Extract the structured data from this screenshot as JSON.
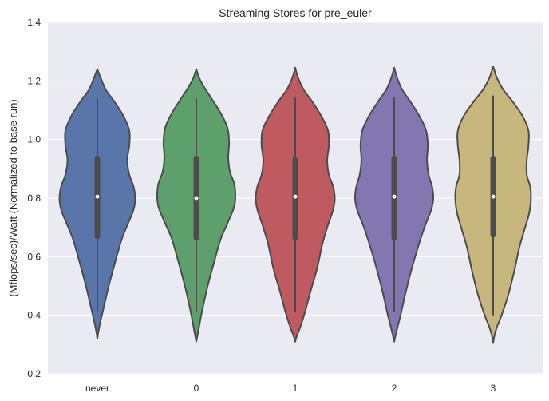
{
  "chart_data": {
    "type": "violin",
    "title": "Streaming Stores for pre_euler",
    "xlabel": "",
    "ylabel": "(Mflops/sec)/Watt (Normalized to base run)",
    "ylim": [
      0.2,
      1.4
    ],
    "yticks": [
      "0.2",
      "0.4",
      "0.6",
      "0.8",
      "1.0",
      "1.2",
      "1.4"
    ],
    "grid": true,
    "categories": [
      "never",
      "0",
      "1",
      "2",
      "3"
    ],
    "violins": [
      {
        "name": "never",
        "color": "#5975a9",
        "min": 0.415,
        "q1": 0.66,
        "median": 0.805,
        "q3": 0.945,
        "max": 1.14,
        "kde_low": 0.32,
        "kde_high": 1.24,
        "profile": [
          [
            0.32,
            0.0
          ],
          [
            0.34,
            0.02
          ],
          [
            0.37,
            0.06
          ],
          [
            0.42,
            0.14
          ],
          [
            0.5,
            0.27
          ],
          [
            0.58,
            0.42
          ],
          [
            0.66,
            0.58
          ],
          [
            0.71,
            0.72
          ],
          [
            0.76,
            0.86
          ],
          [
            0.8,
            0.9
          ],
          [
            0.84,
            0.86
          ],
          [
            0.88,
            0.76
          ],
          [
            0.93,
            0.71
          ],
          [
            0.98,
            0.76
          ],
          [
            1.03,
            0.76
          ],
          [
            1.08,
            0.62
          ],
          [
            1.13,
            0.4
          ],
          [
            1.17,
            0.2
          ],
          [
            1.21,
            0.08
          ],
          [
            1.24,
            0.0
          ]
        ]
      },
      {
        "name": "0",
        "color": "#5ea06c",
        "min": 0.41,
        "q1": 0.655,
        "median": 0.8,
        "q3": 0.945,
        "max": 1.14,
        "kde_low": 0.31,
        "kde_high": 1.24,
        "profile": [
          [
            0.31,
            0.0
          ],
          [
            0.34,
            0.04
          ],
          [
            0.38,
            0.09
          ],
          [
            0.43,
            0.16
          ],
          [
            0.5,
            0.27
          ],
          [
            0.58,
            0.42
          ],
          [
            0.66,
            0.58
          ],
          [
            0.72,
            0.76
          ],
          [
            0.77,
            0.9
          ],
          [
            0.81,
            0.93
          ],
          [
            0.85,
            0.9
          ],
          [
            0.89,
            0.8
          ],
          [
            0.94,
            0.76
          ],
          [
            0.99,
            0.78
          ],
          [
            1.04,
            0.74
          ],
          [
            1.09,
            0.58
          ],
          [
            1.14,
            0.36
          ],
          [
            1.18,
            0.18
          ],
          [
            1.21,
            0.07
          ],
          [
            1.24,
            0.0
          ]
        ]
      },
      {
        "name": "1",
        "color": "#bf5b60",
        "min": 0.41,
        "q1": 0.655,
        "median": 0.805,
        "q3": 0.94,
        "max": 1.145,
        "kde_low": 0.31,
        "kde_high": 1.245,
        "profile": [
          [
            0.31,
            0.0
          ],
          [
            0.33,
            0.04
          ],
          [
            0.36,
            0.12
          ],
          [
            0.41,
            0.23
          ],
          [
            0.48,
            0.36
          ],
          [
            0.56,
            0.52
          ],
          [
            0.64,
            0.64
          ],
          [
            0.7,
            0.76
          ],
          [
            0.76,
            0.9
          ],
          [
            0.8,
            0.94
          ],
          [
            0.84,
            0.9
          ],
          [
            0.88,
            0.8
          ],
          [
            0.93,
            0.76
          ],
          [
            0.98,
            0.8
          ],
          [
            1.03,
            0.78
          ],
          [
            1.08,
            0.62
          ],
          [
            1.13,
            0.4
          ],
          [
            1.17,
            0.2
          ],
          [
            1.21,
            0.07
          ],
          [
            1.245,
            0.0
          ]
        ]
      },
      {
        "name": "2",
        "color": "#8476b1",
        "min": 0.41,
        "q1": 0.655,
        "median": 0.805,
        "q3": 0.945,
        "max": 1.145,
        "kde_low": 0.31,
        "kde_high": 1.245,
        "profile": [
          [
            0.31,
            0.0
          ],
          [
            0.33,
            0.03
          ],
          [
            0.36,
            0.08
          ],
          [
            0.4,
            0.15
          ],
          [
            0.47,
            0.26
          ],
          [
            0.55,
            0.4
          ],
          [
            0.63,
            0.56
          ],
          [
            0.7,
            0.72
          ],
          [
            0.76,
            0.88
          ],
          [
            0.8,
            0.93
          ],
          [
            0.84,
            0.9
          ],
          [
            0.88,
            0.82
          ],
          [
            0.93,
            0.78
          ],
          [
            0.98,
            0.8
          ],
          [
            1.03,
            0.76
          ],
          [
            1.08,
            0.6
          ],
          [
            1.13,
            0.38
          ],
          [
            1.17,
            0.19
          ],
          [
            1.21,
            0.07
          ],
          [
            1.245,
            0.0
          ]
        ]
      },
      {
        "name": "3",
        "color": "#c8b77d",
        "min": 0.4,
        "q1": 0.665,
        "median": 0.805,
        "q3": 0.945,
        "max": 1.15,
        "kde_low": 0.305,
        "kde_high": 1.25,
        "profile": [
          [
            0.305,
            0.0
          ],
          [
            0.33,
            0.03
          ],
          [
            0.36,
            0.09
          ],
          [
            0.4,
            0.2
          ],
          [
            0.47,
            0.36
          ],
          [
            0.55,
            0.5
          ],
          [
            0.63,
            0.62
          ],
          [
            0.69,
            0.74
          ],
          [
            0.75,
            0.86
          ],
          [
            0.8,
            0.9
          ],
          [
            0.84,
            0.88
          ],
          [
            0.88,
            0.8
          ],
          [
            0.93,
            0.8
          ],
          [
            0.98,
            0.84
          ],
          [
            1.03,
            0.84
          ],
          [
            1.08,
            0.7
          ],
          [
            1.13,
            0.46
          ],
          [
            1.17,
            0.24
          ],
          [
            1.21,
            0.09
          ],
          [
            1.25,
            0.0
          ]
        ]
      }
    ],
    "style": {
      "background": "#eaeaf2",
      "grid_color": "#ffffff",
      "outline_color": "#4c4c4c",
      "median_color": "#ffffff"
    }
  }
}
